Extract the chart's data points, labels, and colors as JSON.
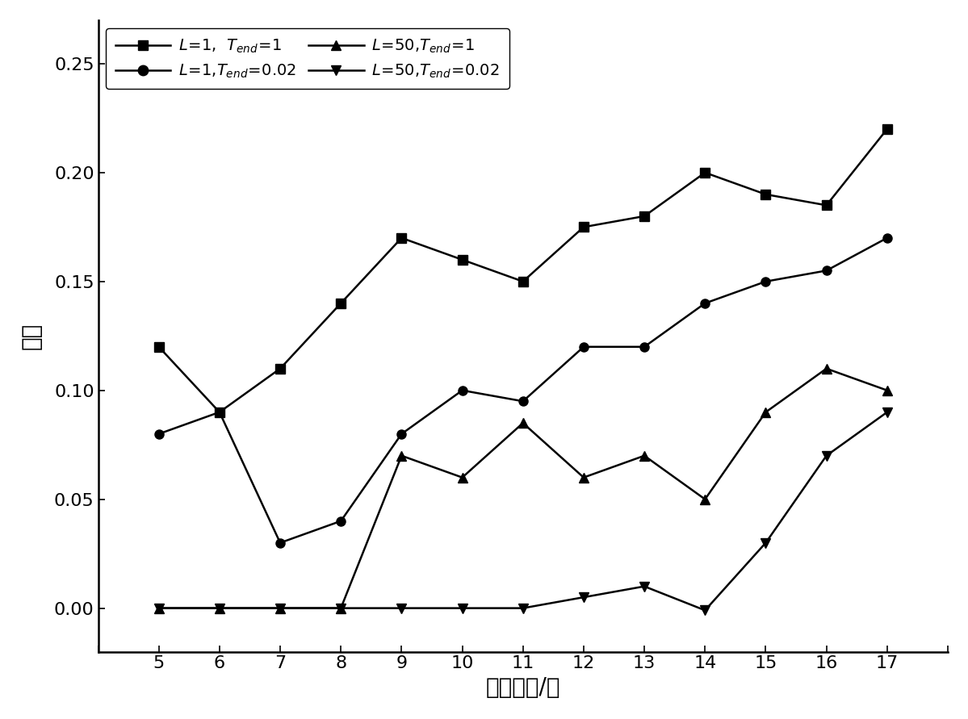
{
  "x": [
    5,
    6,
    7,
    8,
    9,
    10,
    11,
    12,
    13,
    14,
    15,
    16,
    17
  ],
  "series": [
    {
      "label": "L=1,  T_end=1",
      "y": [
        0.12,
        0.09,
        0.11,
        0.14,
        0.17,
        0.16,
        0.15,
        0.175,
        0.18,
        0.2,
        0.19,
        0.185,
        0.22
      ],
      "marker": "s",
      "color": "#000000",
      "markersize": 8
    },
    {
      "label": "L=1, T_end=0.02",
      "y": [
        0.08,
        0.09,
        0.03,
        0.04,
        0.08,
        0.1,
        0.095,
        0.12,
        0.12,
        0.14,
        0.15,
        0.155,
        0.17
      ],
      "marker": "o",
      "color": "#000000",
      "markersize": 8
    },
    {
      "label": "L=50, T_end=1",
      "y": [
        0.0,
        0.0,
        0.0,
        0.0,
        0.07,
        0.06,
        0.085,
        0.06,
        0.07,
        0.05,
        0.09,
        0.11,
        0.1
      ],
      "marker": "^",
      "color": "#000000",
      "markersize": 8
    },
    {
      "label": "L=50, T_end=0.02",
      "y": [
        0.0,
        0.0,
        0.0,
        0.0,
        0.0,
        0.0,
        0.0,
        0.005,
        0.01,
        -0.001,
        0.03,
        0.07,
        0.09
      ],
      "marker": "v",
      "color": "#000000",
      "markersize": 8
    }
  ],
  "xlabel": "批次数量/批",
  "ylabel": "误差",
  "xlim": [
    4,
    18
  ],
  "ylim": [
    -0.02,
    0.27
  ],
  "xticks": [
    4,
    5,
    6,
    7,
    8,
    9,
    10,
    11,
    12,
    13,
    14,
    15,
    16,
    17,
    18
  ],
  "yticks": [
    0.0,
    0.05,
    0.1,
    0.15,
    0.2,
    0.25
  ],
  "background_color": "#ffffff",
  "linewidth": 1.8,
  "axis_fontsize": 20,
  "tick_fontsize": 16,
  "legend_fontsize": 14
}
